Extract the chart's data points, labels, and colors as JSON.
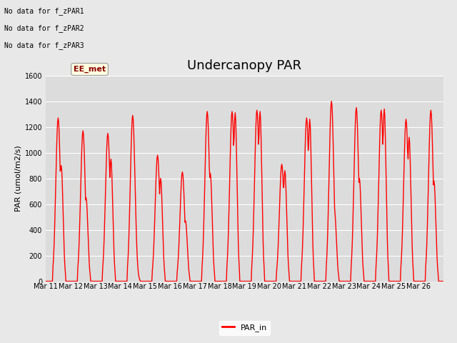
{
  "title": "Undercanopy PAR",
  "ylabel": "PAR (umol/m2/s)",
  "ylim": [
    0,
    1600
  ],
  "yticks": [
    0,
    200,
    400,
    600,
    800,
    1000,
    1200,
    1400,
    1600
  ],
  "line_color": "red",
  "line_width": 1.0,
  "fig_bg_color": "#e8e8e8",
  "plot_bg_color": "#dcdcdc",
  "legend_label": "PAR_in",
  "no_data_texts": [
    "No data for f_zPAR1",
    "No data for f_zPAR2",
    "No data for f_zPAR3"
  ],
  "ee_met_label": "EE_met",
  "x_tick_labels": [
    "Mar 11",
    "Mar 12",
    "Mar 13",
    "Mar 14",
    "Mar 15",
    "Mar 16",
    "Mar 17",
    "Mar 18",
    "Mar 19",
    "Mar 20",
    "Mar 21",
    "Mar 22",
    "Mar 23",
    "Mar 24",
    "Mar 25",
    "Mar 26"
  ],
  "title_fontsize": 13,
  "axis_fontsize": 8,
  "tick_fontsize": 7,
  "day_peaks": [
    1270,
    1170,
    1150,
    1290,
    980,
    850,
    1320,
    1320,
    1330,
    910,
    1270,
    1400,
    1350,
    1330,
    1260,
    1330
  ],
  "day_peaks2": [
    900,
    650,
    950,
    150,
    800,
    470,
    840,
    1310,
    1320,
    860,
    1260,
    540,
    800,
    1340,
    1120,
    780
  ],
  "num_days": 16,
  "points_per_day": 48
}
